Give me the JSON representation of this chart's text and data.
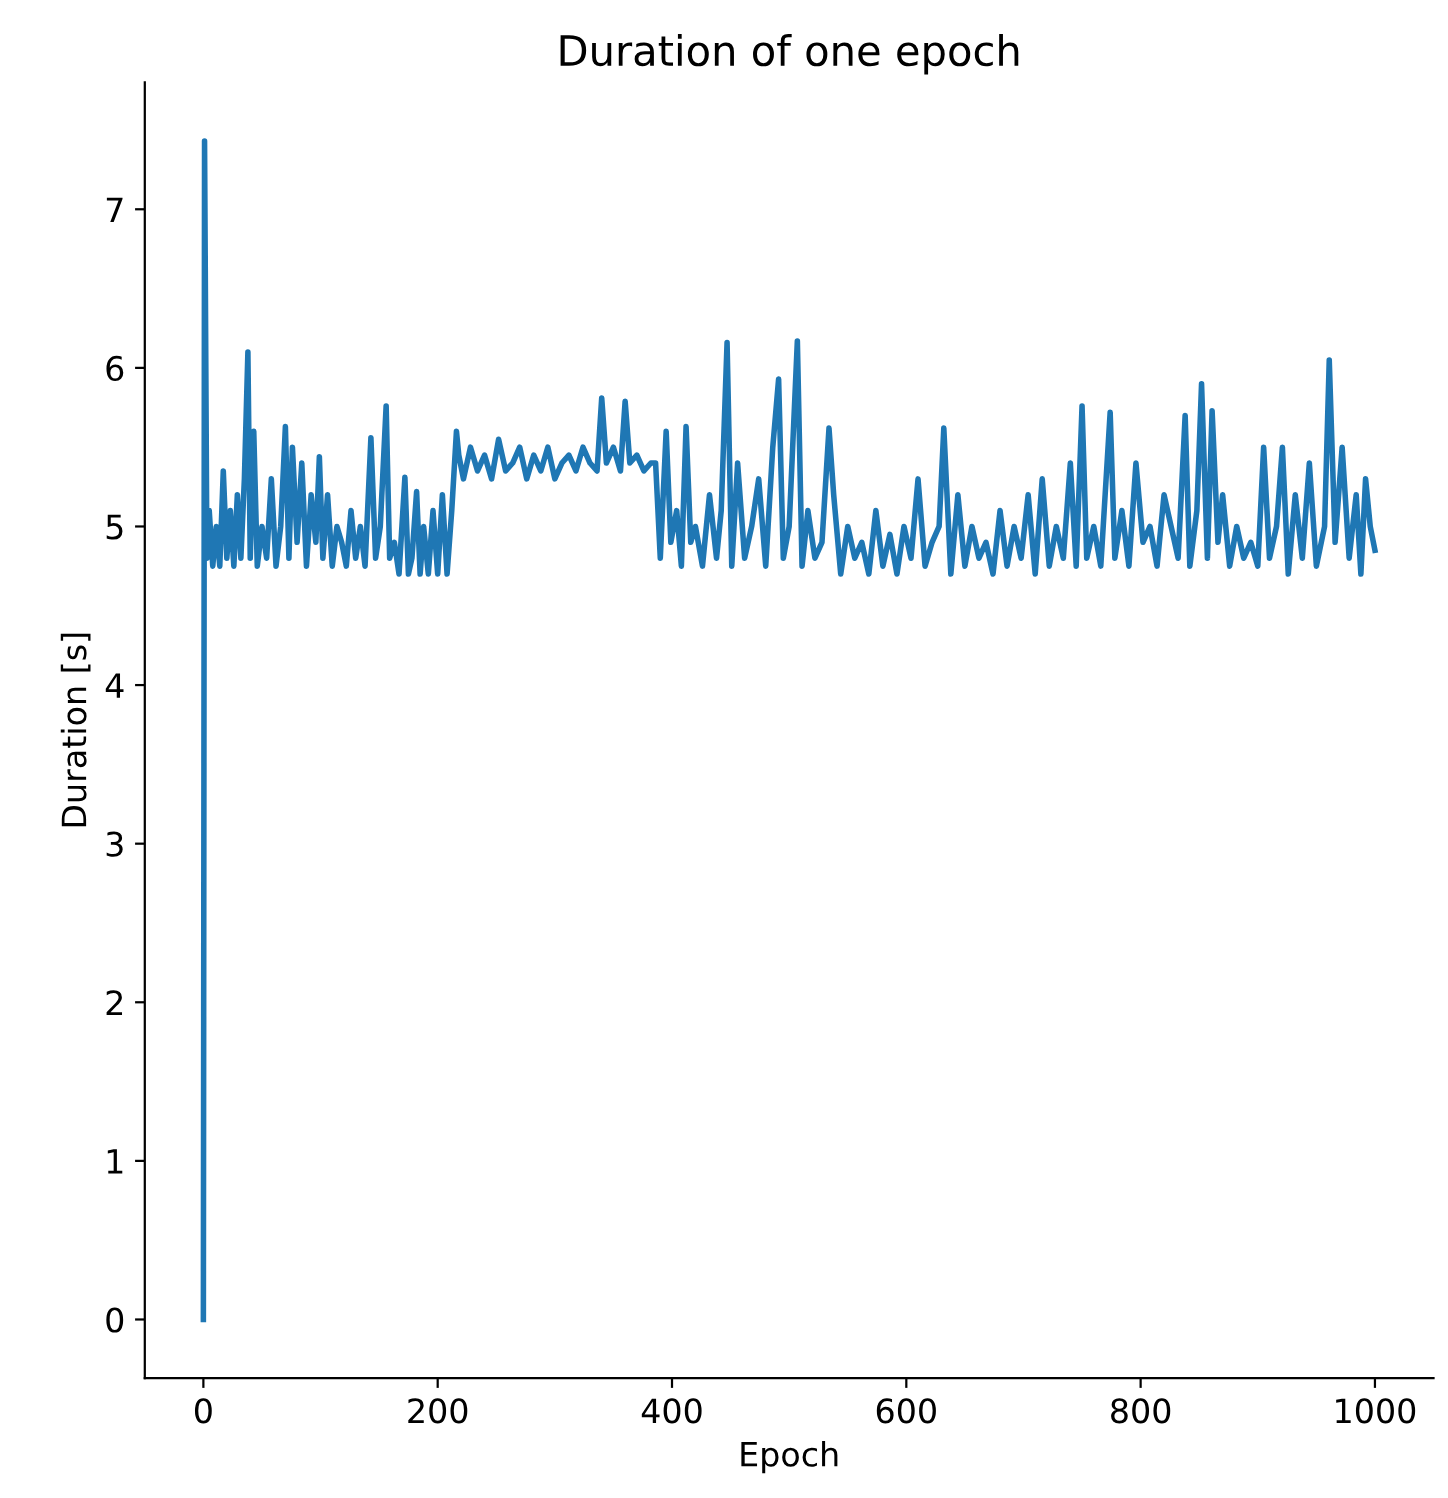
{
  "chart_data": {
    "type": "line",
    "title": "Duration of one epoch",
    "xlabel": "Epoch",
    "ylabel": "Duration [s]",
    "xlim": [
      -50,
      1050
    ],
    "ylim": [
      -0.37,
      7.8
    ],
    "xticks": [
      0,
      200,
      400,
      600,
      800,
      1000
    ],
    "yticks": [
      0,
      1,
      2,
      3,
      4,
      5,
      6,
      7
    ],
    "grid": false,
    "legend": false,
    "series": [
      {
        "color": "#1f77b4",
        "x": [
          0,
          1,
          3,
          5,
          8,
          11,
          14,
          17,
          20,
          23,
          26,
          29,
          32,
          35,
          38,
          40,
          43,
          46,
          50,
          54,
          58,
          62,
          66,
          70,
          73,
          76,
          80,
          84,
          88,
          92,
          96,
          99,
          102,
          106,
          110,
          114,
          118,
          122,
          126,
          130,
          134,
          138,
          143,
          147,
          151,
          156,
          159,
          163,
          167,
          172,
          175,
          178,
          182,
          185,
          188,
          192,
          196,
          200,
          204,
          208,
          212,
          216,
          218,
          222,
          228,
          234,
          240,
          246,
          252,
          258,
          264,
          270,
          276,
          282,
          288,
          294,
          300,
          306,
          312,
          318,
          324,
          330,
          336,
          340,
          344,
          350,
          356,
          360,
          364,
          370,
          376,
          382,
          386,
          390,
          395,
          399,
          404,
          408,
          412,
          416,
          420,
          426,
          432,
          438,
          442,
          447,
          451,
          456,
          462,
          468,
          474,
          480,
          486,
          491,
          495,
          500,
          507,
          511,
          516,
          522,
          528,
          534,
          538,
          544,
          550,
          556,
          562,
          568,
          574,
          580,
          586,
          592,
          598,
          604,
          610,
          616,
          622,
          628,
          632,
          638,
          644,
          650,
          656,
          662,
          668,
          674,
          680,
          686,
          692,
          698,
          704,
          710,
          716,
          722,
          728,
          734,
          740,
          745,
          750,
          754,
          760,
          766,
          774,
          778,
          784,
          790,
          796,
          802,
          808,
          814,
          820,
          826,
          832,
          838,
          842,
          848,
          852,
          857,
          861,
          866,
          870,
          876,
          882,
          888,
          894,
          900,
          905,
          910,
          916,
          921,
          926,
          932,
          938,
          944,
          950,
          957,
          961,
          966,
          972,
          978,
          984,
          988,
          992,
          996,
          1000
        ],
        "values": [
          0,
          7.43,
          4.8,
          5.1,
          4.75,
          5.0,
          4.75,
          5.35,
          4.8,
          5.1,
          4.75,
          5.2,
          4.8,
          5.3,
          6.1,
          4.8,
          5.6,
          4.75,
          5.0,
          4.8,
          5.3,
          4.75,
          5.0,
          5.63,
          4.8,
          5.5,
          4.9,
          5.4,
          4.75,
          5.2,
          4.9,
          5.44,
          4.8,
          5.2,
          4.75,
          5.0,
          4.9,
          4.75,
          5.1,
          4.8,
          5.0,
          4.75,
          5.56,
          4.8,
          5.0,
          5.76,
          4.8,
          4.9,
          4.7,
          5.31,
          4.7,
          4.8,
          5.22,
          4.7,
          5.0,
          4.7,
          5.1,
          4.7,
          5.2,
          4.7,
          5.1,
          5.6,
          5.45,
          5.3,
          5.5,
          5.35,
          5.45,
          5.3,
          5.55,
          5.35,
          5.4,
          5.5,
          5.3,
          5.45,
          5.35,
          5.5,
          5.3,
          5.4,
          5.45,
          5.35,
          5.5,
          5.4,
          5.35,
          5.81,
          5.4,
          5.5,
          5.35,
          5.79,
          5.4,
          5.45,
          5.35,
          5.4,
          5.4,
          4.8,
          5.6,
          4.9,
          5.1,
          4.75,
          5.63,
          4.9,
          5.0,
          4.75,
          5.2,
          4.8,
          5.1,
          6.16,
          4.75,
          5.4,
          4.8,
          5.0,
          5.3,
          4.75,
          5.5,
          5.93,
          4.8,
          5.0,
          6.17,
          4.75,
          5.1,
          4.8,
          4.9,
          5.62,
          5.2,
          4.7,
          5.0,
          4.8,
          4.9,
          4.7,
          5.1,
          4.75,
          4.95,
          4.7,
          5.0,
          4.8,
          5.3,
          4.75,
          4.9,
          5.0,
          5.62,
          4.7,
          5.2,
          4.75,
          5.0,
          4.8,
          4.9,
          4.7,
          5.1,
          4.75,
          5.0,
          4.8,
          5.2,
          4.7,
          5.3,
          4.75,
          5.0,
          4.8,
          5.4,
          4.75,
          5.76,
          4.8,
          5.0,
          4.75,
          5.72,
          4.8,
          5.1,
          4.75,
          5.4,
          4.9,
          5.0,
          4.75,
          5.2,
          5.0,
          4.8,
          5.7,
          4.75,
          5.1,
          5.9,
          4.8,
          5.73,
          4.9,
          5.2,
          4.75,
          5.0,
          4.8,
          4.9,
          4.75,
          5.5,
          4.8,
          5.0,
          5.5,
          4.7,
          5.2,
          4.8,
          5.4,
          4.75,
          5.0,
          6.05,
          4.9,
          5.5,
          4.8,
          5.2,
          4.7,
          5.3,
          5.0,
          4.85
        ]
      }
    ]
  }
}
